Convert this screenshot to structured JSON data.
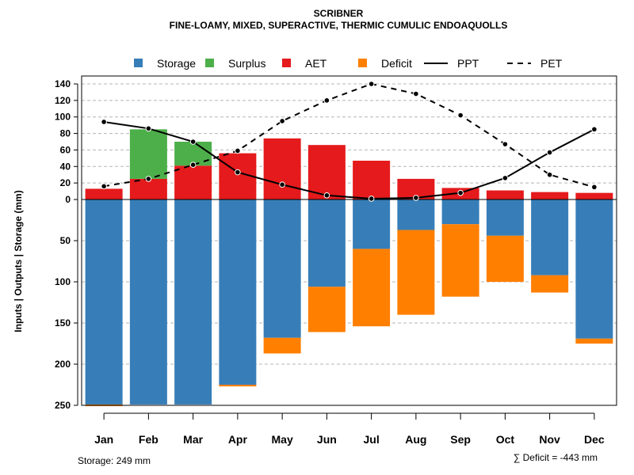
{
  "chart_data": {
    "type": "bar",
    "title": "SCRIBNER",
    "subtitle": "FINE-LOAMY, MIXED, SUPERACTIVE, THERMIC CUMULIC ENDOAQUOLLS",
    "ylabel": "Inputs | Outputs | Storage    (mm)",
    "categories": [
      "Jan",
      "Feb",
      "Mar",
      "Apr",
      "May",
      "Jun",
      "Jul",
      "Aug",
      "Sep",
      "Oct",
      "Nov",
      "Dec"
    ],
    "upper_ticks": [
      "0",
      "20",
      "40",
      "60",
      "80",
      "100",
      "120",
      "140"
    ],
    "lower_ticks": [
      "50",
      "100",
      "150",
      "200",
      "250"
    ],
    "upper_ylim": [
      0,
      140
    ],
    "lower_ylim": [
      0,
      250
    ],
    "legend": [
      {
        "name": "Storage",
        "kind": "box",
        "color": "#377EB8"
      },
      {
        "name": "Surplus",
        "kind": "box",
        "color": "#4DAF4A"
      },
      {
        "name": "AET",
        "kind": "box",
        "color": "#E41A1C"
      },
      {
        "name": "Deficit",
        "kind": "box",
        "color": "#FF7F00"
      },
      {
        "name": "PPT",
        "kind": "solid"
      },
      {
        "name": "PET",
        "kind": "dashed"
      }
    ],
    "series": {
      "AET": [
        13,
        25,
        41,
        56,
        74,
        66,
        47,
        25,
        14,
        11,
        9,
        8
      ],
      "Surplus": [
        0,
        60,
        29,
        0,
        0,
        0,
        0,
        0,
        0,
        0,
        0,
        0
      ],
      "Storage": [
        249,
        249,
        249,
        225,
        168,
        106,
        60,
        37,
        30,
        44,
        92,
        169
      ],
      "Deficit": [
        2,
        0,
        0,
        2,
        19,
        55,
        94,
        103,
        88,
        56,
        21,
        6
      ],
      "PPT": [
        94,
        86,
        70,
        33,
        18,
        5,
        1,
        2,
        8,
        26,
        57,
        85
      ],
      "PET": [
        16,
        25,
        42,
        59,
        95,
        120,
        140,
        128,
        102,
        67,
        30,
        15
      ]
    },
    "footer_left": "Storage: 249 mm",
    "footer_right": "∑ Deficit = -443 mm"
  }
}
